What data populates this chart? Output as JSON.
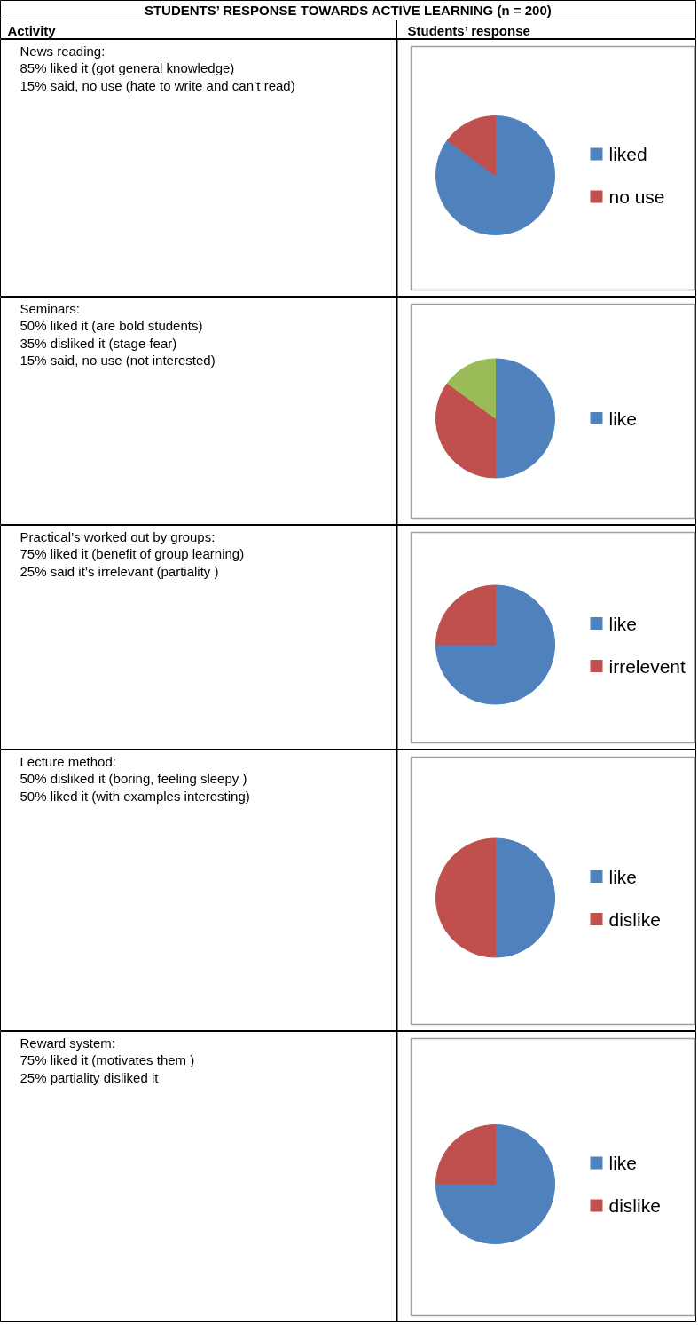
{
  "chart_data": [
    {
      "type": "other",
      "title": "STUDENTS’ RESPONSE TOWARDS ACTIVE LEARNING (n = 200)",
      "annotations": [
        "Activity",
        "Students’ response"
      ]
    },
    {
      "type": "pie",
      "annotations": [
        "News reading:",
        "85% liked it (got general knowledge)",
        "15%  said, no use (hate to write and can’t read)"
      ],
      "categories": [
        "liked",
        "no use"
      ],
      "values": [
        85,
        15
      ],
      "colors": [
        "#4f81bd",
        "#c0504d"
      ],
      "legend": "right"
    },
    {
      "type": "pie",
      "annotations": [
        "Seminars:",
        "50%  liked it (are bold students)",
        "35% disliked it  (stage fear)",
        "15% said, no use  (not interested)"
      ],
      "categories": [
        "like",
        null,
        null
      ],
      "values": [
        50,
        35,
        15
      ],
      "colors": [
        "#4f81bd",
        "#c0504d",
        "#9bbb59"
      ],
      "legend": "right"
    },
    {
      "type": "pie",
      "annotations": [
        "Practical’s worked out by groups:",
        "75%  liked it (benefit of group learning)",
        "25%  said it’s irrelevant (partiality )"
      ],
      "categories": [
        "like",
        "irrelevent"
      ],
      "values": [
        75,
        25
      ],
      "colors": [
        "#4f81bd",
        "#c0504d"
      ],
      "legend": "right"
    },
    {
      "type": "pie",
      "annotations": [
        "Lecture method:",
        "50% disliked it  (boring, feeling sleepy )",
        "50%  liked it  (with examples interesting)"
      ],
      "categories": [
        "like",
        "dislike"
      ],
      "values": [
        50,
        50
      ],
      "colors": [
        "#4f81bd",
        "#c0504d"
      ],
      "legend": "right"
    },
    {
      "type": "pie",
      "annotations": [
        "Reward system:",
        "75% liked it (motivates them )",
        "25% partiality disliked it"
      ],
      "categories": [
        "like",
        "dislike"
      ],
      "values": [
        75,
        25
      ],
      "colors": [
        "#4f81bd",
        "#c0504d"
      ],
      "legend": "right"
    }
  ]
}
